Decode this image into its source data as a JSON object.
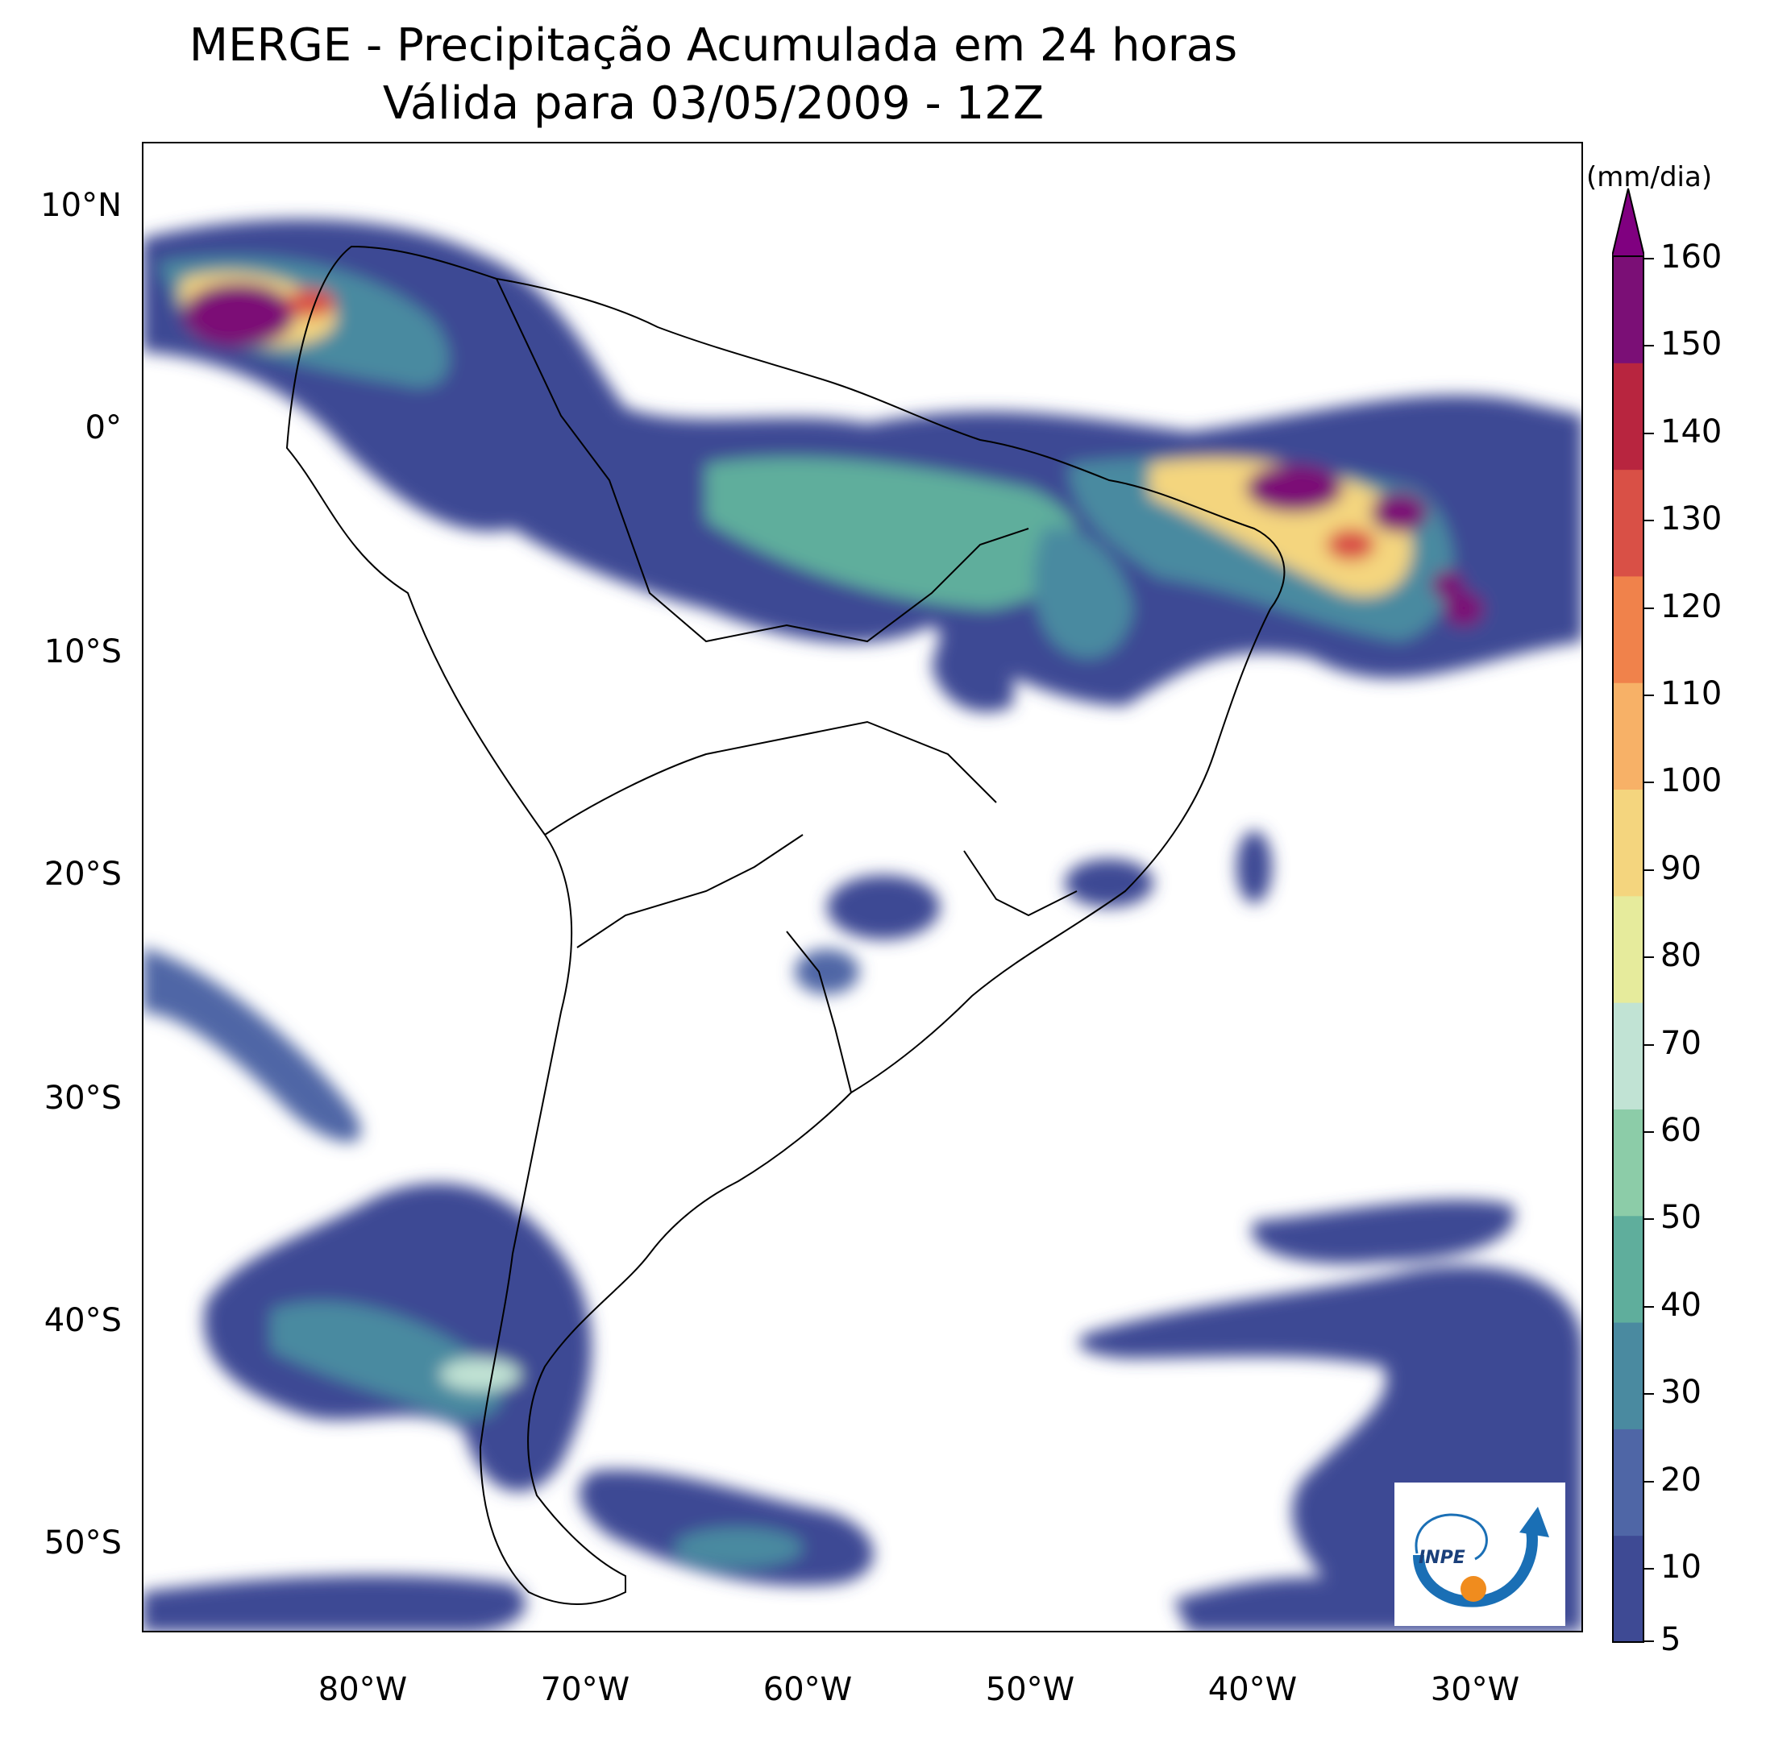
{
  "title": {
    "line1": "MERGE - Precipitação Acumulada em 24 horas",
    "line2": "Válida para 03/05/2009 - 12Z"
  },
  "axes": {
    "lat_labels": [
      "10°N",
      "0°",
      "10°S",
      "20°S",
      "30°S",
      "40°S",
      "50°S"
    ],
    "lon_labels": [
      "80°W",
      "70°W",
      "60°W",
      "50°W",
      "40°W",
      "30°W"
    ]
  },
  "colorbar": {
    "unit": "(mm/dia)",
    "ticks": [
      "5",
      "10",
      "20",
      "30",
      "40",
      "50",
      "60",
      "70",
      "80",
      "90",
      "100",
      "110",
      "120",
      "130",
      "140",
      "150",
      "160"
    ],
    "colors": [
      "#3e4a94",
      "#4f66a6",
      "#4a8aa0",
      "#5fae9c",
      "#8ccca8",
      "#c1e3d4",
      "#e6eb9c",
      "#f4d57e",
      "#f7b167",
      "#f0824b",
      "#d95046",
      "#b8253f",
      "#7b0f76"
    ],
    "extend_color": "#800080"
  },
  "logo": {
    "text": "INPE",
    "colors": {
      "arc": "#1a6fb5",
      "dot": "#f08c1e"
    }
  }
}
